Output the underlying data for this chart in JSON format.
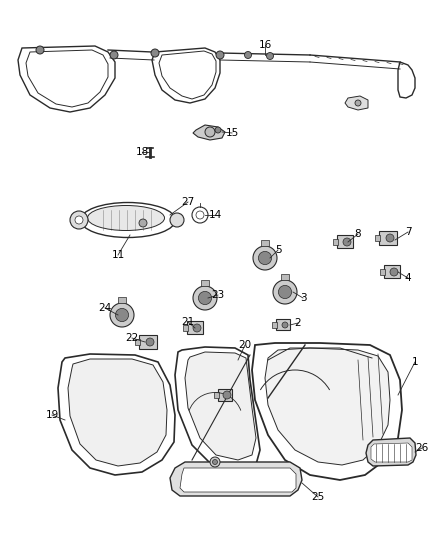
{
  "bg_color": "#ffffff",
  "line_color": "#2a2a2a",
  "text_color": "#000000",
  "fig_width": 4.38,
  "fig_height": 5.33,
  "dpi": 100
}
